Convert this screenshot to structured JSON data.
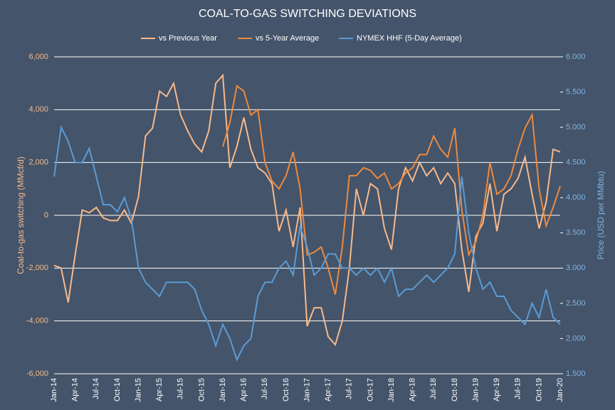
{
  "chart_data": {
    "type": "line",
    "title": "COAL-TO-GAS SWITCHING DEVIATIONS",
    "y_label": "Coal-to-gas switching (MMcf/d)",
    "y2_label": "Price (USD per MMbtu)",
    "categories": [
      "Jan-14",
      null,
      null,
      "Apr-14",
      null,
      null,
      "Jul-14",
      null,
      null,
      "Oct-14",
      null,
      null,
      "Jan-15",
      null,
      null,
      "Apr-15",
      null,
      null,
      "Jul-15",
      null,
      null,
      "Oct-15",
      null,
      null,
      "Jan-16",
      null,
      null,
      "Apr-16",
      null,
      null,
      "Jul-16",
      null,
      null,
      "Oct-16",
      null,
      null,
      "Jan-17",
      null,
      null,
      "Apr-17",
      null,
      null,
      "Jul-17",
      null,
      null,
      "Oct-17",
      null,
      null,
      "Jan-18",
      null,
      null,
      "Apr-18",
      null,
      null,
      "Jul-18",
      null,
      null,
      "Oct-18",
      null,
      null,
      "Jan-19",
      null,
      null,
      "Apr-19",
      null,
      null,
      "Jul-19",
      null,
      null,
      "Oct-19",
      null,
      null,
      "Jan-20"
    ],
    "series": [
      {
        "name": "vs Previous Year",
        "color": "#f8b98a",
        "values": [
          -1900,
          -2000,
          -3300,
          -1500,
          200,
          100,
          300,
          -100,
          -200,
          -200,
          200,
          -300,
          700,
          3000,
          3300,
          4700,
          4500,
          5000,
          3800,
          3200,
          2700,
          2400,
          3200,
          5000,
          5300,
          1800,
          2600,
          3700,
          2500,
          1800,
          1600,
          1200,
          -600,
          200,
          -1200,
          300,
          -4200,
          -3500,
          -3500,
          -4600,
          -4900,
          -4000,
          -2000,
          1000,
          0,
          1200,
          1000,
          -500,
          -1300,
          1000,
          1800,
          1300,
          2000,
          1500,
          1800,
          1200,
          1600,
          1200,
          -1300,
          -2900,
          -800,
          -300,
          1200,
          -600,
          800,
          1000,
          1400,
          2200,
          800,
          -500,
          500,
          2500,
          2400
        ]
      },
      {
        "name": "vs 5-Year Average",
        "color": "#ed8a3f",
        "values": [
          null,
          null,
          null,
          null,
          null,
          null,
          null,
          null,
          null,
          null,
          null,
          null,
          null,
          null,
          null,
          null,
          null,
          null,
          null,
          null,
          null,
          null,
          null,
          null,
          2600,
          3500,
          4900,
          4700,
          3800,
          4000,
          2000,
          1300,
          1000,
          1500,
          2400,
          1000,
          -1500,
          -1400,
          -1200,
          -2000,
          -3000,
          -1200,
          1500,
          1500,
          1800,
          1700,
          1400,
          1600,
          1000,
          1200,
          1600,
          1800,
          2300,
          2300,
          3000,
          2500,
          2200,
          3300,
          200,
          -1500,
          -1000,
          0,
          2000,
          800,
          1000,
          1500,
          2500,
          3300,
          3800,
          1000,
          -400,
          300,
          1100
        ]
      },
      {
        "name": "NYMEX HHF (5-Day Average)",
        "color": "#5b9bd5",
        "axis": "y2",
        "values": [
          4.3,
          5.0,
          4.8,
          4.5,
          4.5,
          4.7,
          4.3,
          3.9,
          3.9,
          3.8,
          4.0,
          3.7,
          3.0,
          2.8,
          2.7,
          2.6,
          2.8,
          2.8,
          2.8,
          2.8,
          2.7,
          2.4,
          2.2,
          1.9,
          2.2,
          2.0,
          1.7,
          1.9,
          2.0,
          2.6,
          2.8,
          2.8,
          3.0,
          3.1,
          2.9,
          3.6,
          3.3,
          2.9,
          3.0,
          3.2,
          3.2,
          3.0,
          3.0,
          2.9,
          3.0,
          2.9,
          3.0,
          2.8,
          3.0,
          2.6,
          2.7,
          2.7,
          2.8,
          2.9,
          2.8,
          2.9,
          3.0,
          3.2,
          4.3,
          3.5,
          3.0,
          2.7,
          2.8,
          2.6,
          2.6,
          2.4,
          2.3,
          2.2,
          2.5,
          2.3,
          2.7,
          2.3,
          2.2
        ]
      }
    ],
    "ylim": [
      -6000,
      6000
    ],
    "yticks": [
      {
        "value": -6000,
        "label": "-6,000"
      },
      {
        "value": -4000,
        "label": "-4,000"
      },
      {
        "value": -2000,
        "label": "-2,000"
      },
      0,
      {
        "value": 2000,
        "label": "2,000"
      },
      {
        "value": 4000,
        "label": "4,000"
      },
      {
        "value": 6000,
        "label": "6,000"
      }
    ],
    "y2lim": [
      1.5,
      6.0
    ],
    "y2ticks": [
      {
        "value": 1.5,
        "label": "1.500"
      },
      {
        "value": 2.0,
        "label": "2.000"
      },
      {
        "value": 2.5,
        "label": "2.500"
      },
      {
        "value": 3.0,
        "label": "3.000"
      },
      {
        "value": 3.5,
        "label": "3.500"
      },
      {
        "value": 4.0,
        "label": "4.000"
      },
      {
        "value": 4.5,
        "label": "4.500"
      },
      {
        "value": 5.0,
        "label": "5.000"
      },
      {
        "value": 5.5,
        "label": "5.500"
      },
      {
        "value": 6.0,
        "label": "6.000"
      }
    ],
    "grid": true,
    "legend": "top"
  }
}
